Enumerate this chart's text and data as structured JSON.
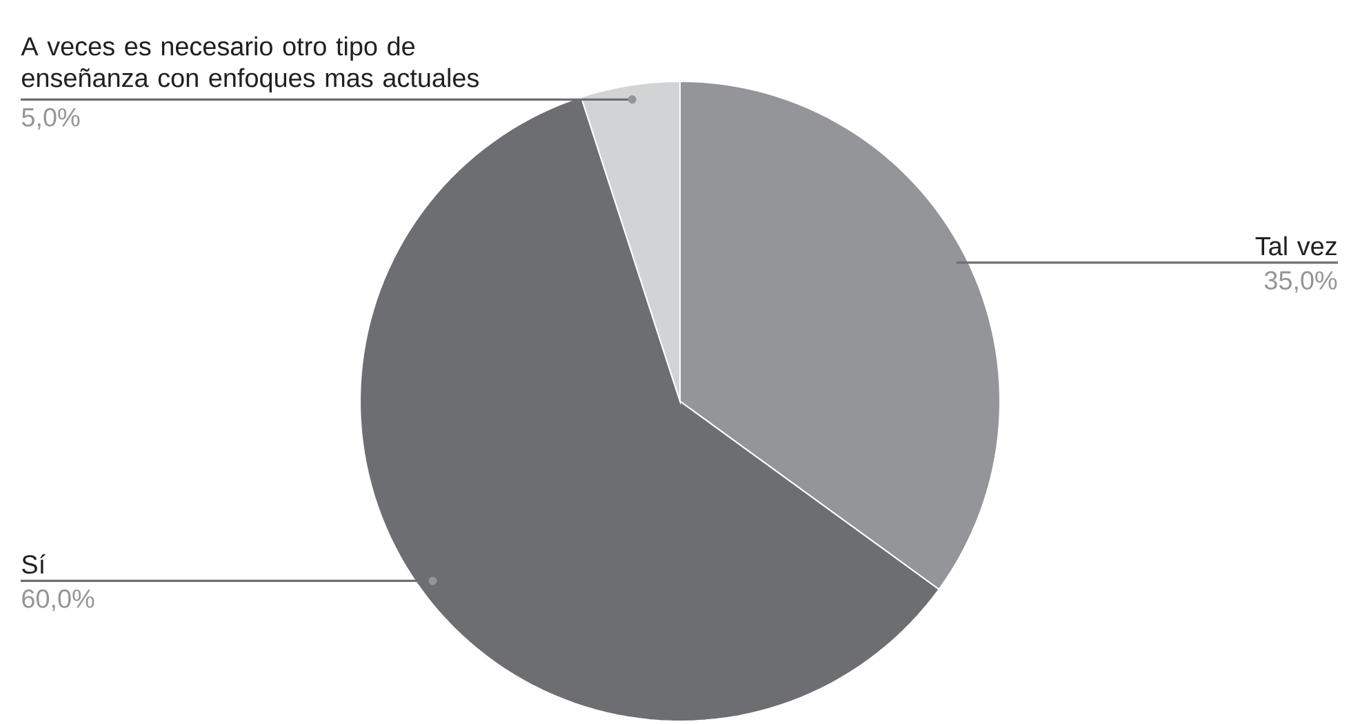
{
  "chart_data": {
    "type": "pie",
    "categories": [
      "Tal vez",
      "Sí",
      "A veces es necesario otro tipo de enseñanza con enfoques mas actuales"
    ],
    "values": [
      35,
      60,
      5
    ],
    "colors": [
      "#939598",
      "#6d6e71",
      "#d1d3d4"
    ],
    "value_labels": [
      "35,0%",
      "60,0%",
      "5,0%"
    ]
  }
}
